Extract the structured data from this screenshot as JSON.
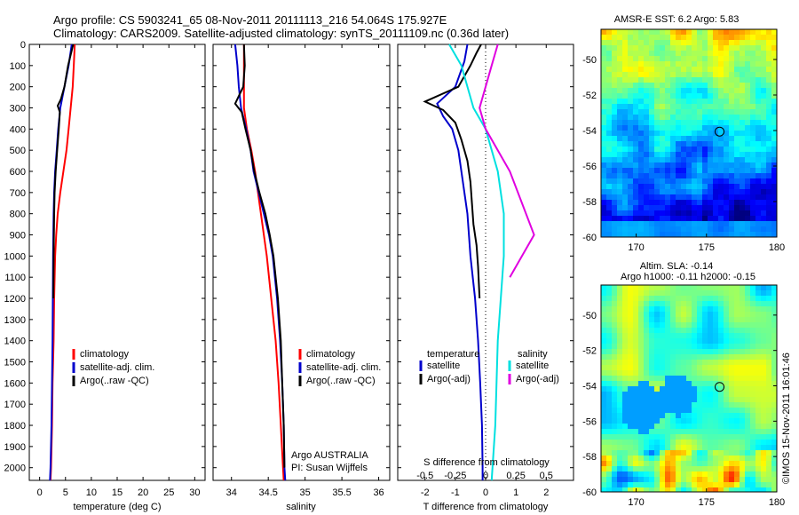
{
  "title_line1": "Argo profile: CS 5903241_65 08-Nov-2011 20111113_216 54.064S 175.927E",
  "title_line2": "Climatology: CARS2009. Satellite-adjusted climatology: synTS_20111109.nc (0.36d later)",
  "footer_stamp": "©IMOS 15-Nov-2011 16:01:46",
  "colors": {
    "climatology": "#ff0000",
    "satellite": "#0000cc",
    "argo": "#000000",
    "sat_salinity": "#00e0e0",
    "argo_salinity": "#e000e0"
  },
  "chart_data": [
    {
      "type": "line",
      "id": "temperature",
      "xlabel": "temperature (deg C)",
      "ylabel": "",
      "xlim": [
        -2,
        32
      ],
      "ylim": [
        2060,
        0
      ],
      "xticks": [
        "0",
        "5",
        "10",
        "15",
        "20",
        "25",
        "30"
      ],
      "yticks": [
        "0",
        "100",
        "200",
        "300",
        "400",
        "500",
        "600",
        "700",
        "800",
        "900",
        "1000",
        "1100",
        "1200",
        "1300",
        "1400",
        "1500",
        "1600",
        "1700",
        "1800",
        "1900",
        "2000"
      ],
      "legend": [
        "climatology",
        "satellite-adj. clim.",
        "Argo(..raw -QC)"
      ],
      "series": [
        {
          "name": "climatology",
          "color": "#ff0000",
          "points": [
            [
              6.8,
              0
            ],
            [
              6.6,
              100
            ],
            [
              6.4,
              200
            ],
            [
              6.0,
              300
            ],
            [
              5.6,
              400
            ],
            [
              5.2,
              500
            ],
            [
              4.6,
              600
            ],
            [
              4.0,
              700
            ],
            [
              3.5,
              800
            ],
            [
              3.2,
              900
            ],
            [
              3.0,
              1000
            ],
            [
              2.8,
              1200
            ],
            [
              2.7,
              1400
            ],
            [
              2.5,
              1600
            ],
            [
              2.4,
              1800
            ],
            [
              2.2,
              2000
            ],
            [
              2.1,
              2060
            ]
          ]
        },
        {
          "name": "satellite-adj. clim.",
          "color": "#0000cc",
          "points": [
            [
              6.2,
              0
            ],
            [
              5.6,
              100
            ],
            [
              4.8,
              200
            ],
            [
              4.0,
              300
            ],
            [
              3.6,
              400
            ],
            [
              3.3,
              500
            ],
            [
              3.0,
              600
            ],
            [
              2.8,
              700
            ],
            [
              2.7,
              800
            ],
            [
              2.65,
              900
            ],
            [
              2.6,
              1000
            ],
            [
              2.55,
              1200
            ],
            [
              2.5,
              1400
            ],
            [
              2.4,
              1600
            ],
            [
              2.3,
              1800
            ],
            [
              2.1,
              2000
            ],
            [
              2.0,
              2060
            ]
          ]
        },
        {
          "name": "Argo(..raw -QC)",
          "color": "#000000",
          "points": [
            [
              6.5,
              0
            ],
            [
              6.3,
              20
            ],
            [
              5.5,
              100
            ],
            [
              4.8,
              200
            ],
            [
              4.1,
              260
            ],
            [
              3.5,
              290
            ],
            [
              3.9,
              320
            ],
            [
              3.7,
              400
            ],
            [
              3.4,
              500
            ],
            [
              3.1,
              600
            ],
            [
              2.9,
              700
            ],
            [
              2.8,
              800
            ],
            [
              2.75,
              900
            ],
            [
              2.7,
              1000
            ],
            [
              2.65,
              1200
            ]
          ]
        }
      ]
    },
    {
      "type": "line",
      "id": "salinity",
      "xlabel": "salinity",
      "ylabel": "",
      "xlim": [
        33.75,
        36.15
      ],
      "ylim": [
        2060,
        0
      ],
      "xticks": [
        "34",
        "34.5",
        "35",
        "35.5",
        "36"
      ],
      "legend": [
        "climatology",
        "satellite-adj. clim.",
        "Argo(..raw -QC)"
      ],
      "annotation": [
        "Argo AUSTRALIA",
        "PI: Susan Wijffels"
      ],
      "series": [
        {
          "name": "climatology",
          "color": "#ff0000",
          "points": [
            [
              34.17,
              0
            ],
            [
              34.17,
              100
            ],
            [
              34.17,
              200
            ],
            [
              34.17,
              300
            ],
            [
              34.21,
              400
            ],
            [
              34.27,
              500
            ],
            [
              34.32,
              600
            ],
            [
              34.36,
              700
            ],
            [
              34.4,
              800
            ],
            [
              34.44,
              900
            ],
            [
              34.48,
              1000
            ],
            [
              34.54,
              1200
            ],
            [
              34.6,
              1400
            ],
            [
              34.64,
              1600
            ],
            [
              34.67,
              1800
            ],
            [
              34.7,
              2000
            ],
            [
              34.71,
              2060
            ]
          ]
        },
        {
          "name": "satellite-adj. clim.",
          "color": "#0000cc",
          "points": [
            [
              34.05,
              0
            ],
            [
              34.08,
              100
            ],
            [
              34.1,
              200
            ],
            [
              34.13,
              300
            ],
            [
              34.2,
              400
            ],
            [
              34.26,
              500
            ],
            [
              34.3,
              600
            ],
            [
              34.37,
              700
            ],
            [
              34.44,
              800
            ],
            [
              34.51,
              900
            ],
            [
              34.56,
              1000
            ],
            [
              34.62,
              1200
            ],
            [
              34.66,
              1400
            ],
            [
              34.69,
              1600
            ],
            [
              34.71,
              1800
            ],
            [
              34.72,
              2000
            ],
            [
              34.73,
              2060
            ]
          ]
        },
        {
          "name": "Argo(..raw -QC)",
          "color": "#000000",
          "points": [
            [
              34.17,
              0
            ],
            [
              34.18,
              100
            ],
            [
              34.16,
              200
            ],
            [
              34.05,
              280
            ],
            [
              34.14,
              320
            ],
            [
              34.19,
              400
            ],
            [
              34.26,
              500
            ],
            [
              34.31,
              600
            ],
            [
              34.38,
              700
            ],
            [
              34.46,
              800
            ],
            [
              34.52,
              900
            ],
            [
              34.57,
              1000
            ],
            [
              34.63,
              1200
            ],
            [
              34.67,
              1400
            ],
            [
              34.69,
              1600
            ],
            [
              34.71,
              1800
            ],
            [
              34.72,
              2000
            ]
          ]
        }
      ]
    },
    {
      "type": "line",
      "id": "differences",
      "xlabel": "T difference from climatology",
      "xlabel2": "S difference from climatology",
      "xlim": [
        -2.9,
        2.9
      ],
      "ylim": [
        2060,
        0
      ],
      "xticks_T": [
        "-2",
        "-1",
        "0",
        "1",
        "2"
      ],
      "xticks_S": [
        "-0.5",
        "-0.25",
        "0",
        "0.25",
        "0.5"
      ],
      "legend_titles": [
        "temperature",
        "salinity"
      ],
      "legend": [
        "satellite",
        "Argo(-adj)",
        "satellite",
        "Argo(-adj)"
      ],
      "series": [
        {
          "name": "satellite",
          "group": "temperature",
          "color": "#0000cc",
          "points": [
            [
              -0.6,
              0
            ],
            [
              -0.7,
              80
            ],
            [
              -1.0,
              200
            ],
            [
              -1.6,
              280
            ],
            [
              -1.4,
              340
            ],
            [
              -1.1,
              400
            ],
            [
              -0.9,
              500
            ],
            [
              -0.8,
              600
            ],
            [
              -0.7,
              700
            ],
            [
              -0.6,
              800
            ],
            [
              -0.5,
              1000
            ],
            [
              -0.35,
              1200
            ],
            [
              -0.25,
              1400
            ],
            [
              -0.18,
              1600
            ],
            [
              -0.12,
              1800
            ],
            [
              -0.1,
              2000
            ],
            [
              -0.1,
              2060
            ]
          ]
        },
        {
          "name": "Argo(-adj)",
          "group": "temperature",
          "color": "#000000",
          "points": [
            [
              -0.15,
              0
            ],
            [
              -0.3,
              40
            ],
            [
              -0.5,
              100
            ],
            [
              -0.9,
              200
            ],
            [
              -2.0,
              270
            ],
            [
              -1.4,
              310
            ],
            [
              -1.0,
              370
            ],
            [
              -0.8,
              450
            ],
            [
              -0.6,
              550
            ],
            [
              -0.5,
              650
            ],
            [
              -0.45,
              750
            ],
            [
              -0.4,
              850
            ],
            [
              -0.3,
              950
            ],
            [
              -0.25,
              1050
            ],
            [
              -0.2,
              1200
            ]
          ]
        },
        {
          "name": "satellite",
          "group": "salinity",
          "color": "#00e0e0",
          "points": [
            [
              -0.3,
              0
            ],
            [
              -0.2,
              100
            ],
            [
              -0.1,
              300
            ],
            [
              0.0,
              400
            ],
            [
              0.1,
              600
            ],
            [
              0.15,
              800
            ],
            [
              0.15,
              1000
            ],
            [
              0.1,
              1400
            ],
            [
              0.08,
              1800
            ],
            [
              0.05,
              2060
            ]
          ]
        },
        {
          "name": "Argo(-adj)",
          "group": "salinity",
          "color": "#e000e0",
          "points": [
            [
              0.1,
              0
            ],
            [
              0.05,
              100
            ],
            [
              -0.05,
              300
            ],
            [
              0.0,
              400
            ],
            [
              0.2,
              600
            ],
            [
              0.4,
              900
            ],
            [
              0.3,
              1000
            ],
            [
              0.2,
              1100
            ]
          ]
        }
      ]
    },
    {
      "type": "heatmap",
      "id": "sst",
      "title": "AMSR-E SST: 6.2 Argo: 5.83",
      "xlim": [
        167.5,
        180
      ],
      "ylim": [
        -60,
        -48.3
      ],
      "xticks": [
        "170",
        "175",
        "180"
      ],
      "yticks": [
        "-50",
        "-52",
        "-54",
        "-56",
        "-58",
        "-60"
      ],
      "marker": [
        175.93,
        -54.06
      ]
    },
    {
      "type": "heatmap",
      "id": "sla",
      "title": "Altim. SLA: -0.14",
      "subtitle": "Argo h1000: -0.11 h2000: -0.15",
      "xlim": [
        167.5,
        180
      ],
      "ylim": [
        -60,
        -48.3
      ],
      "xticks": [
        "170",
        "175",
        "180"
      ],
      "yticks": [
        "-50",
        "-52",
        "-54",
        "-56",
        "-58",
        "-60"
      ],
      "marker": [
        175.93,
        -54.06
      ]
    }
  ]
}
